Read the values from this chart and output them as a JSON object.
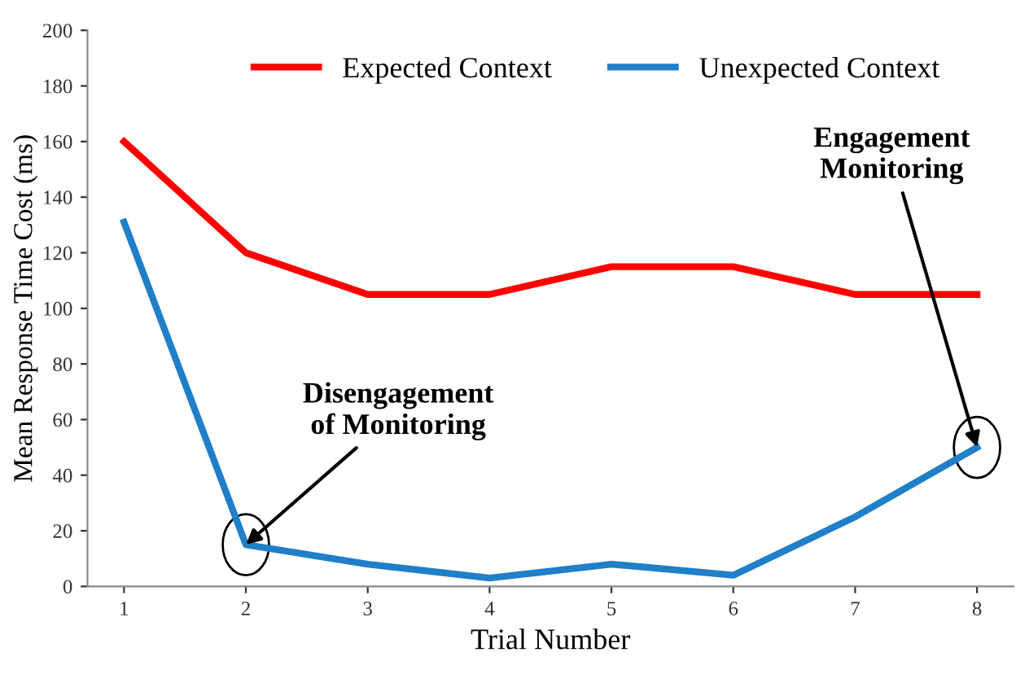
{
  "chart_data": {
    "type": "line",
    "xlabel": "Trial Number",
    "ylabel": "Mean Response Time Cost (ms)",
    "categories": [
      "1",
      "2",
      "3",
      "4",
      "5",
      "6",
      "7",
      "8"
    ],
    "series": [
      {
        "name": "Expected Context",
        "color": "#ff0000",
        "values": [
          160,
          120,
          105,
          105,
          115,
          115,
          105,
          105
        ]
      },
      {
        "name": "Unexpected Context",
        "color": "#1f7fc8",
        "values": [
          131,
          15,
          8,
          3,
          8,
          4,
          25,
          50
        ]
      }
    ],
    "ylim": [
      0,
      200
    ],
    "yticks": [
      0,
      20,
      40,
      60,
      80,
      100,
      120,
      140,
      160,
      180,
      200
    ],
    "grid": false,
    "legend": "top",
    "marker": "none",
    "line_style": "solid",
    "annotations": [
      {
        "text": "Disengagement\nof Monitoring",
        "x": "2",
        "y": 15
      },
      {
        "text": "Engagement\nMonitoring",
        "x": "8",
        "y": 50
      }
    ]
  }
}
